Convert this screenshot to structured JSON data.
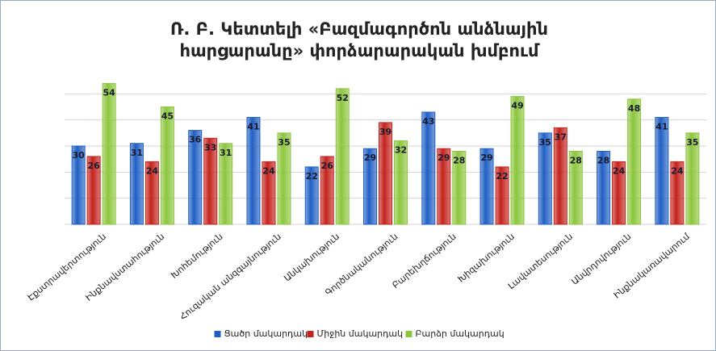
{
  "chart_data": {
    "type": "bar",
    "title": [
      "Ռ. Բ. Կետտելի «Բազմագործոն անձնային",
      "հարցարանը» փորձարարական խմբում"
    ],
    "categories": [
      "Էքստրավերտություն",
      "Ինքնավստահություն",
      "Խոհեմություն",
      "Հուզական անզգայնություն",
      "Անկախություն",
      "Գործնականություն",
      "Բարեխղճություն",
      "Խիզախություն",
      "Լավատեսություն",
      "Անվրդովություն",
      "Ինքնակառավարում"
    ],
    "series": [
      {
        "name": "Ցածր մակարդակ",
        "color": "#1f5fc4",
        "values": [
          30,
          31,
          36,
          41,
          22,
          29,
          43,
          29,
          35,
          28,
          41
        ]
      },
      {
        "name": "Միջին մակարդակ",
        "color": "#c4221c",
        "values": [
          26,
          24,
          33,
          24,
          26,
          39,
          29,
          22,
          37,
          24,
          24
        ]
      },
      {
        "name": "Բարձր մակարդակ",
        "color": "#8cc63c",
        "values": [
          54,
          45,
          31,
          35,
          52,
          32,
          28,
          49,
          28,
          48,
          35
        ]
      }
    ],
    "ylim": [
      0,
      60
    ],
    "yticks": [
      0,
      10,
      20,
      30,
      40,
      50
    ],
    "grid": true,
    "legend": "bottom"
  }
}
